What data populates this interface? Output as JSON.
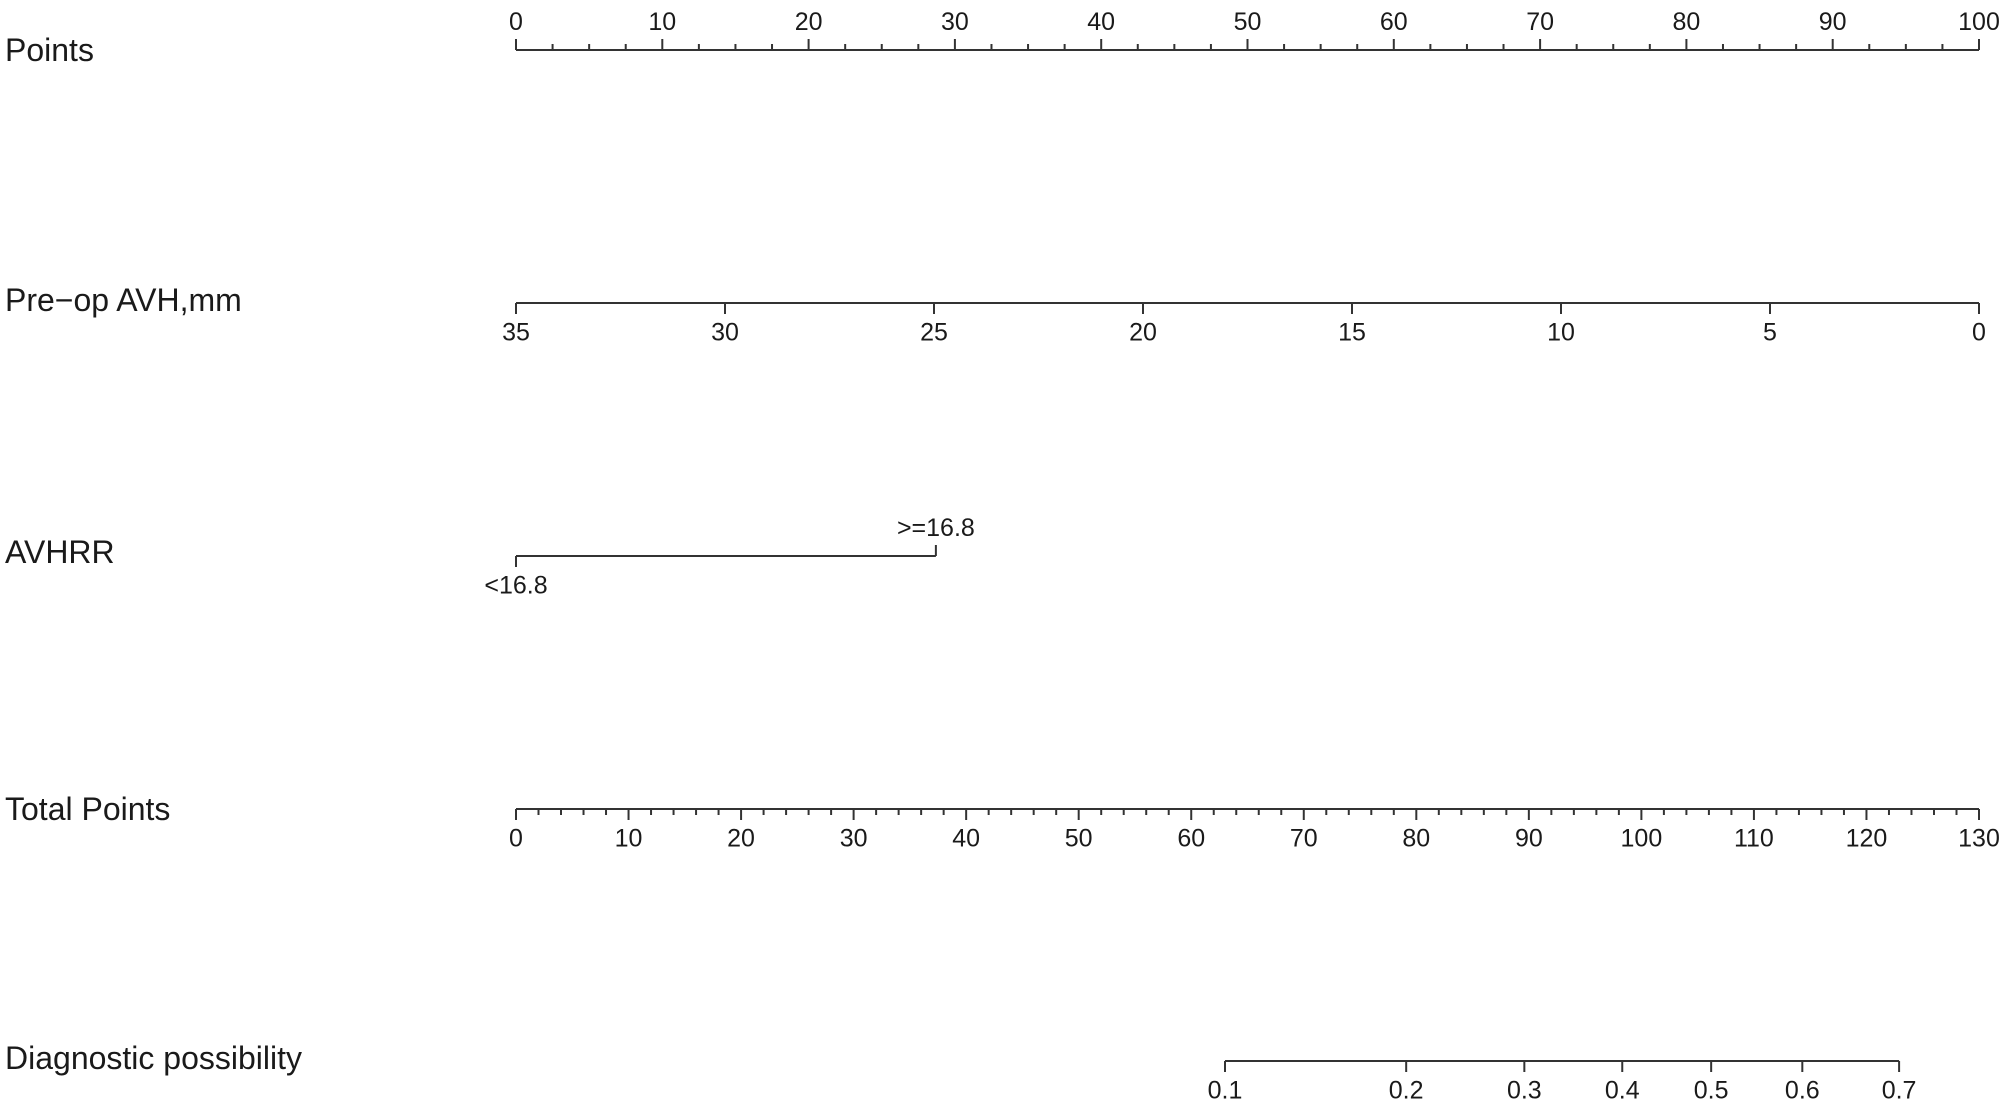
{
  "chart_data": {
    "type": "nomogram",
    "axes": [
      {
        "id": "points",
        "label": "Points",
        "range": [
          0,
          100
        ],
        "major_ticks": [
          0,
          10,
          20,
          30,
          40,
          50,
          60,
          70,
          80,
          90,
          100
        ],
        "tick_labels": [
          "0",
          "10",
          "20",
          "30",
          "40",
          "50",
          "60",
          "70",
          "80",
          "90",
          "100"
        ],
        "minor_step": 2.5,
        "labels_position": "above"
      },
      {
        "id": "pre_op_avh",
        "label": "Pre−op AVH,mm",
        "range": [
          35,
          0
        ],
        "points_range": [
          0,
          100
        ],
        "major_ticks": [
          35,
          30,
          25,
          20,
          15,
          10,
          5,
          0
        ],
        "tick_labels": [
          "35",
          "30",
          "25",
          "20",
          "15",
          "10",
          "5",
          "0"
        ],
        "labels_position": "below"
      },
      {
        "id": "avhrr",
        "label": "AVHRR",
        "type": "categorical",
        "categories": [
          {
            "label": "<16.8",
            "points": 0,
            "label_position": "below"
          },
          {
            "label": ">=16.8",
            "points": 28.7,
            "label_position": "above"
          }
        ]
      },
      {
        "id": "total_points",
        "label": "Total Points",
        "range": [
          0,
          130
        ],
        "major_ticks": [
          0,
          10,
          20,
          30,
          40,
          50,
          60,
          70,
          80,
          90,
          100,
          110,
          120,
          130
        ],
        "tick_labels": [
          "0",
          "10",
          "20",
          "30",
          "40",
          "50",
          "60",
          "70",
          "80",
          "90",
          "100",
          "110",
          "120",
          "130"
        ],
        "minor_step": 2,
        "labels_position": "below"
      },
      {
        "id": "diagnostic_possibility",
        "label": "Diagnostic possibility",
        "major_ticks": [
          0.1,
          0.2,
          0.3,
          0.4,
          0.5,
          0.6,
          0.7
        ],
        "tick_labels": [
          "0.1",
          "0.2",
          "0.3",
          "0.4",
          "0.5",
          "0.6",
          "0.7"
        ],
        "total_points_at_ticks": [
          63.0,
          79.1,
          89.6,
          98.3,
          106.2,
          114.3,
          122.9
        ],
        "labels_position": "below"
      }
    ]
  }
}
